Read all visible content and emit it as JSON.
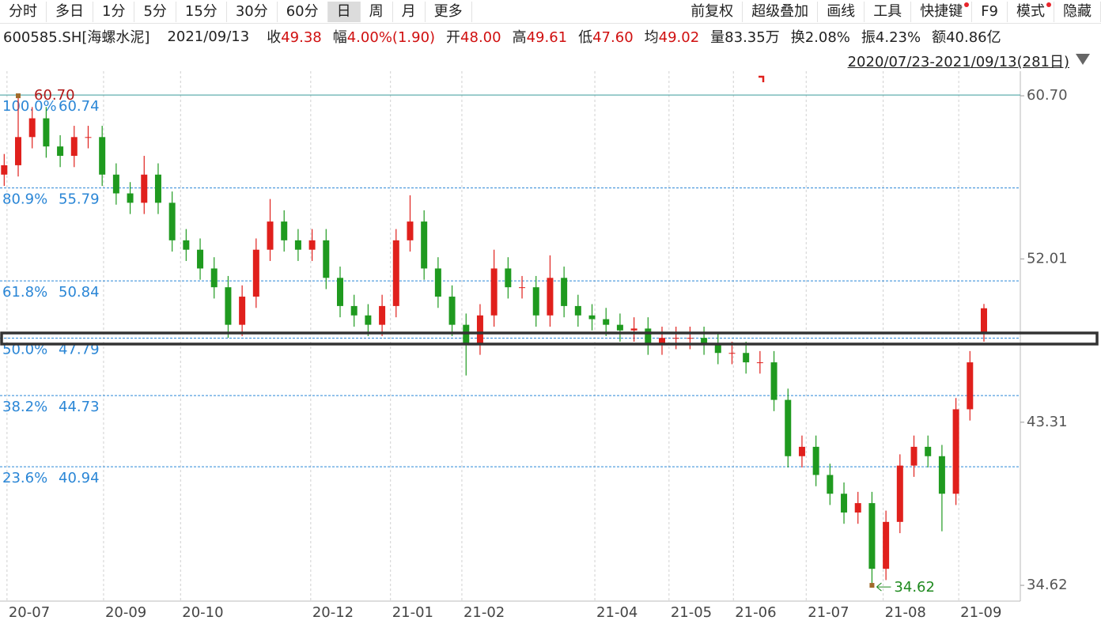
{
  "toolbar": {
    "left": [
      "分时",
      "多日",
      "1分",
      "5分",
      "15分",
      "30分",
      "60分",
      "日",
      "周",
      "月",
      "更多"
    ],
    "active": 7,
    "right": [
      {
        "text": "前复权"
      },
      {
        "text": "超级叠加"
      },
      {
        "text": "画线"
      },
      {
        "text": "工具"
      },
      {
        "text": "快捷键",
        "badge": true
      },
      {
        "text": "F9"
      },
      {
        "text": "模式",
        "badge": true
      },
      {
        "text": "隐藏"
      }
    ]
  },
  "info": {
    "symbol": "600585.SH[海螺水泥]",
    "date": "2021/09/13",
    "fields": [
      {
        "label": "收",
        "value": "49.38",
        "color": "#d01010"
      },
      {
        "label": "幅",
        "value": "4.00%(1.90)",
        "color": "#d01010"
      },
      {
        "label": "开",
        "value": "48.00",
        "color": "#d01010"
      },
      {
        "label": "高",
        "value": "49.61",
        "color": "#d01010"
      },
      {
        "label": "低",
        "value": "47.60",
        "color": "#d01010"
      },
      {
        "label": "均",
        "value": "49.02",
        "color": "#d01010"
      },
      {
        "label": "量",
        "value": "83.35万",
        "color": "#222222"
      },
      {
        "label": "换",
        "value": "2.08%",
        "color": "#222222"
      },
      {
        "label": "振",
        "value": "4.23%",
        "color": "#222222"
      },
      {
        "label": "额",
        "value": "40.86亿",
        "color": "#222222"
      }
    ]
  },
  "range": "2020/07/23-2021/09/13(281日)",
  "chart_data": {
    "type": "candlestick",
    "xlim": [
      -0.3,
      72.6
    ],
    "xticks": [
      {
        "value": 0.2,
        "label": "20-07"
      },
      {
        "value": 7.1,
        "label": "20-09"
      },
      {
        "value": 12.6,
        "label": "20-10"
      },
      {
        "value": 21.9,
        "label": "20-12"
      },
      {
        "value": 27.6,
        "label": "21-01"
      },
      {
        "value": 32.7,
        "label": "21-02"
      },
      {
        "value": 42.2,
        "label": "21-04"
      },
      {
        "value": 47.5,
        "label": "21-05"
      },
      {
        "value": 52.1,
        "label": "21-06"
      },
      {
        "value": 57.3,
        "label": "21-07"
      },
      {
        "value": 62.8,
        "label": "21-08"
      },
      {
        "value": 68.2,
        "label": "21-09"
      }
    ],
    "ylim": [
      33.78,
      62.01
    ],
    "yticks": [
      34.62,
      43.31,
      52.01,
      {
        "value": 60.7,
        "label": "60.70"
      }
    ],
    "grid": true,
    "up_color": "#e0201c",
    "down_color": "#1f9a1f",
    "open": [
      56.5,
      57,
      58.5,
      59.5,
      58,
      57.5,
      58.5,
      58.5,
      56.5,
      55.5,
      55,
      56.5,
      55,
      53,
      52.5,
      51.5,
      50.5,
      48.5,
      50,
      52.5,
      54,
      53,
      52.5,
      53,
      51,
      49.5,
      49,
      48.5,
      49.5,
      53,
      54,
      51.5,
      50,
      48.5,
      47.5,
      49,
      51.5,
      50.5,
      50.5,
      49,
      51,
      49.5,
      49,
      48.8,
      48.5,
      48.2,
      48.3,
      47.5,
      47.8,
      47.8,
      47.8,
      47.5,
      47,
      47,
      46.5,
      46.5,
      44.5,
      41.5,
      42,
      40.5,
      39.5,
      38.5,
      39,
      35.5,
      38,
      41,
      42,
      41.5,
      39.5,
      44,
      48.0
    ],
    "high": [
      57.6,
      60.7,
      60.1,
      60.1,
      58.6,
      59.1,
      59.1,
      59.1,
      57.1,
      56.1,
      57.5,
      57.1,
      55.6,
      53.6,
      53.1,
      52.1,
      51.1,
      50.6,
      53.1,
      55.2,
      54.6,
      53.6,
      53.6,
      53.6,
      51.6,
      50.1,
      49.6,
      50.1,
      53.6,
      55.4,
      54.6,
      52.1,
      50.6,
      49.1,
      49.6,
      52.5,
      52.1,
      51.1,
      51.1,
      52.2,
      51.6,
      50.1,
      49.6,
      49.4,
      49.1,
      48.9,
      48.9,
      48.4,
      48.4,
      48.4,
      48.4,
      48.1,
      47.6,
      47.6,
      47.1,
      47.1,
      45.1,
      42.6,
      42.6,
      41.1,
      40.1,
      39.6,
      39.6,
      38.6,
      41.6,
      42.6,
      42.6,
      42.1,
      44.6,
      47.1,
      49.61
    ],
    "low": [
      55.9,
      56.4,
      57.9,
      57.4,
      56.9,
      56.9,
      57.9,
      55.9,
      54.9,
      54.4,
      54.4,
      54.4,
      52.4,
      51.9,
      50.9,
      49.9,
      47.8,
      47.9,
      49.4,
      51.9,
      52.4,
      51.9,
      51.9,
      50.4,
      48.9,
      48.4,
      47.9,
      47.9,
      48.9,
      52.4,
      50.9,
      49.4,
      47.9,
      45.8,
      46.9,
      48.4,
      49.9,
      49.9,
      48.4,
      48.4,
      48.9,
      48.4,
      48.2,
      47.9,
      47.6,
      47.6,
      46.9,
      46.9,
      47.2,
      47.2,
      46.9,
      46.4,
      46.4,
      45.9,
      45.9,
      43.9,
      40.9,
      40.9,
      39.9,
      38.9,
      37.9,
      37.9,
      34.62,
      34.9,
      37.4,
      40.4,
      40.9,
      37.5,
      38.9,
      43.4,
      47.6
    ],
    "close": [
      57,
      58.5,
      59.5,
      58,
      57.5,
      58.5,
      58.5,
      56.5,
      55.5,
      55,
      56.5,
      55,
      53,
      52.5,
      51.5,
      50.5,
      48.5,
      50,
      52.5,
      54,
      53,
      52.5,
      53,
      51,
      49.5,
      49,
      48.5,
      49.5,
      53,
      54,
      51.5,
      50,
      48.5,
      47.5,
      49,
      51.5,
      50.5,
      50.5,
      49,
      51,
      49.5,
      49,
      48.8,
      48.5,
      48.2,
      48.3,
      47.5,
      47.8,
      47.8,
      47.8,
      47.5,
      47,
      47,
      46.5,
      46.5,
      44.5,
      41.5,
      42,
      40.5,
      39.5,
      38.5,
      39,
      35.5,
      38,
      41,
      42,
      41.5,
      39.5,
      44,
      46.5,
      49.38
    ],
    "fib_levels": [
      {
        "label": "100.0%",
        "value": 60.74
      },
      {
        "label": "80.9%",
        "value": 55.79
      },
      {
        "label": "61.8%",
        "value": 50.84
      },
      {
        "label": "50.0%",
        "value": 47.79
      },
      {
        "label": "38.2%",
        "value": 44.73
      },
      {
        "label": "23.6%",
        "value": 40.94
      }
    ],
    "fib_color": "#2a86d6",
    "max_annotation": {
      "x": 1,
      "value": 60.7,
      "label": "60.70",
      "color": "#b01818"
    },
    "min_annotation": {
      "x": 62,
      "value": 34.62,
      "color": "#1f8a1f"
    }
  }
}
